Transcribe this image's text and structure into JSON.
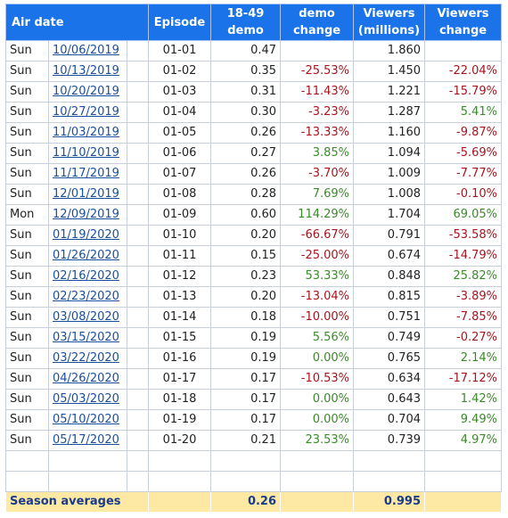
{
  "headers": {
    "air_date": "Air date",
    "episode": "Episode",
    "demo": [
      "18-49",
      "demo"
    ],
    "demo_change": [
      "demo",
      "change"
    ],
    "viewers": [
      "Viewers",
      "(millions)"
    ],
    "viewers_change": [
      "Viewers",
      "change"
    ]
  },
  "rows": [
    {
      "day": "Sun",
      "date": "10/06/2019",
      "episode": "01-01",
      "demo": "0.47",
      "demo_change": "",
      "demo_dir": "",
      "viewers": "1.860",
      "viewers_change": "",
      "viewers_dir": ""
    },
    {
      "day": "Sun",
      "date": "10/13/2019",
      "episode": "01-02",
      "demo": "0.35",
      "demo_change": "-25.53%",
      "demo_dir": "neg",
      "viewers": "1.450",
      "viewers_change": "-22.04%",
      "viewers_dir": "neg"
    },
    {
      "day": "Sun",
      "date": "10/20/2019",
      "episode": "01-03",
      "demo": "0.31",
      "demo_change": "-11.43%",
      "demo_dir": "neg",
      "viewers": "1.221",
      "viewers_change": "-15.79%",
      "viewers_dir": "neg"
    },
    {
      "day": "Sun",
      "date": "10/27/2019",
      "episode": "01-04",
      "demo": "0.30",
      "demo_change": "-3.23%",
      "demo_dir": "neg",
      "viewers": "1.287",
      "viewers_change": "5.41%",
      "viewers_dir": "pos"
    },
    {
      "day": "Sun",
      "date": "11/03/2019",
      "episode": "01-05",
      "demo": "0.26",
      "demo_change": "-13.33%",
      "demo_dir": "neg",
      "viewers": "1.160",
      "viewers_change": "-9.87%",
      "viewers_dir": "neg"
    },
    {
      "day": "Sun",
      "date": "11/10/2019",
      "episode": "01-06",
      "demo": "0.27",
      "demo_change": "3.85%",
      "demo_dir": "pos",
      "viewers": "1.094",
      "viewers_change": "-5.69%",
      "viewers_dir": "neg"
    },
    {
      "day": "Sun",
      "date": "11/17/2019",
      "episode": "01-07",
      "demo": "0.26",
      "demo_change": "-3.70%",
      "demo_dir": "neg",
      "viewers": "1.009",
      "viewers_change": "-7.77%",
      "viewers_dir": "neg"
    },
    {
      "day": "Sun",
      "date": "12/01/2019",
      "episode": "01-08",
      "demo": "0.28",
      "demo_change": "7.69%",
      "demo_dir": "pos",
      "viewers": "1.008",
      "viewers_change": "-0.10%",
      "viewers_dir": "neg"
    },
    {
      "day": "Mon",
      "date": "12/09/2019",
      "episode": "01-09",
      "demo": "0.60",
      "demo_change": "114.29%",
      "demo_dir": "pos",
      "viewers": "1.704",
      "viewers_change": "69.05%",
      "viewers_dir": "pos"
    },
    {
      "day": "Sun",
      "date": "01/19/2020",
      "episode": "01-10",
      "demo": "0.20",
      "demo_change": "-66.67%",
      "demo_dir": "neg",
      "viewers": "0.791",
      "viewers_change": "-53.58%",
      "viewers_dir": "neg"
    },
    {
      "day": "Sun",
      "date": "01/26/2020",
      "episode": "01-11",
      "demo": "0.15",
      "demo_change": "-25.00%",
      "demo_dir": "neg",
      "viewers": "0.674",
      "viewers_change": "-14.79%",
      "viewers_dir": "neg"
    },
    {
      "day": "Sun",
      "date": "02/16/2020",
      "episode": "01-12",
      "demo": "0.23",
      "demo_change": "53.33%",
      "demo_dir": "pos",
      "viewers": "0.848",
      "viewers_change": "25.82%",
      "viewers_dir": "pos"
    },
    {
      "day": "Sun",
      "date": "02/23/2020",
      "episode": "01-13",
      "demo": "0.20",
      "demo_change": "-13.04%",
      "demo_dir": "neg",
      "viewers": "0.815",
      "viewers_change": "-3.89%",
      "viewers_dir": "neg"
    },
    {
      "day": "Sun",
      "date": "03/08/2020",
      "episode": "01-14",
      "demo": "0.18",
      "demo_change": "-10.00%",
      "demo_dir": "neg",
      "viewers": "0.751",
      "viewers_change": "-7.85%",
      "viewers_dir": "neg"
    },
    {
      "day": "Sun",
      "date": "03/15/2020",
      "episode": "01-15",
      "demo": "0.19",
      "demo_change": "5.56%",
      "demo_dir": "pos",
      "viewers": "0.749",
      "viewers_change": "-0.27%",
      "viewers_dir": "neg"
    },
    {
      "day": "Sun",
      "date": "03/22/2020",
      "episode": "01-16",
      "demo": "0.19",
      "demo_change": "0.00%",
      "demo_dir": "pos",
      "viewers": "0.765",
      "viewers_change": "2.14%",
      "viewers_dir": "pos"
    },
    {
      "day": "Sun",
      "date": "04/26/2020",
      "episode": "01-17",
      "demo": "0.17",
      "demo_change": "-10.53%",
      "demo_dir": "neg",
      "viewers": "0.634",
      "viewers_change": "-17.12%",
      "viewers_dir": "neg"
    },
    {
      "day": "Sun",
      "date": "05/03/2020",
      "episode": "01-18",
      "demo": "0.17",
      "demo_change": "0.00%",
      "demo_dir": "pos",
      "viewers": "0.643",
      "viewers_change": "1.42%",
      "viewers_dir": "pos"
    },
    {
      "day": "Sun",
      "date": "05/10/2020",
      "episode": "01-19",
      "demo": "0.17",
      "demo_change": "0.00%",
      "demo_dir": "pos",
      "viewers": "0.704",
      "viewers_change": "9.49%",
      "viewers_dir": "pos"
    },
    {
      "day": "Sun",
      "date": "05/17/2020",
      "episode": "01-20",
      "demo": "0.21",
      "demo_change": "23.53%",
      "demo_dir": "pos",
      "viewers": "0.739",
      "viewers_change": "4.97%",
      "viewers_dir": "pos"
    }
  ],
  "blank_rows": 2,
  "footer": {
    "label": "Season averages",
    "demo_avg": "0.26",
    "viewers_avg": "0.995"
  },
  "colors": {
    "header_bg": "#1a73e8",
    "footer_bg": "#fde9a3",
    "negative": "#a8141e",
    "positive": "#3a8a2a",
    "link": "#1a4f9c"
  }
}
